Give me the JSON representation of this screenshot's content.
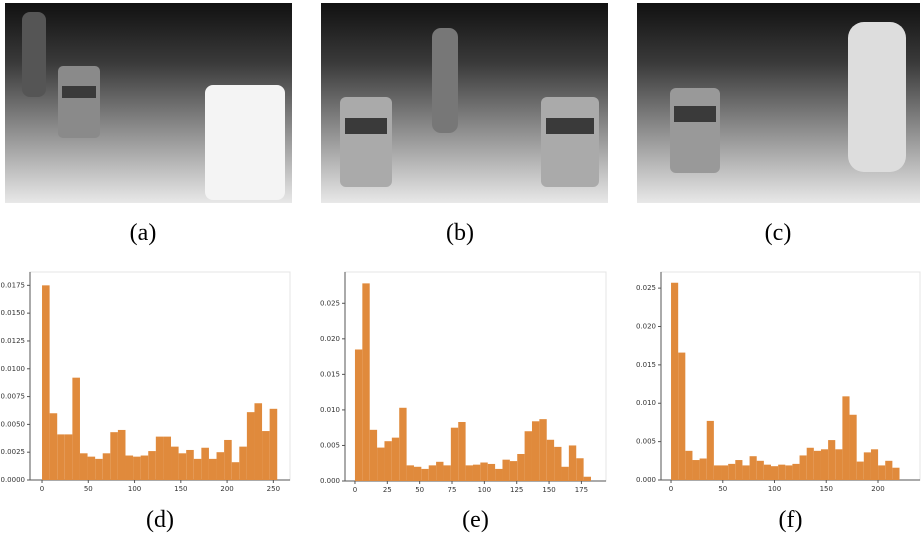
{
  "images": [
    {
      "caption": "(a)"
    },
    {
      "caption": "(b)"
    },
    {
      "caption": "(c)"
    }
  ],
  "chart_data": [
    {
      "type": "histogram",
      "caption": "(d)",
      "color": "#e08a3c",
      "bins": [
        0,
        8.2,
        16.4,
        24.6,
        32.8,
        41,
        49.2,
        57.4,
        65.6,
        73.8,
        82,
        90.2,
        98.4,
        106.6,
        114.8,
        123,
        131.2,
        139.4,
        147.6,
        155.8,
        164,
        172.2,
        180.4,
        188.6,
        196.8,
        205,
        213.2,
        221.4,
        229.6,
        237.8,
        246,
        254.2
      ],
      "values": [
        0.0175,
        0.006,
        0.0041,
        0.0041,
        0.0092,
        0.0024,
        0.0021,
        0.0019,
        0.0024,
        0.0043,
        0.0045,
        0.0022,
        0.0021,
        0.0022,
        0.0026,
        0.0039,
        0.0039,
        0.003,
        0.0024,
        0.0027,
        0.0019,
        0.0029,
        0.0019,
        0.0025,
        0.0036,
        0.0016,
        0.003,
        0.0061,
        0.0069,
        0.0044,
        0.0064
      ],
      "xlim": [
        -13,
        268
      ],
      "ylim": [
        0,
        0.0187
      ],
      "xticks": [
        0,
        50,
        100,
        150,
        200,
        250
      ],
      "yticks": [
        {
          "value": 0,
          "label": "0.0000"
        },
        {
          "value": 0.0025,
          "label": "0.0025"
        },
        {
          "value": 0.005,
          "label": "0.0050"
        },
        {
          "value": 0.0075,
          "label": "0.0075"
        },
        {
          "value": 0.01,
          "label": "0.0100"
        },
        {
          "value": 0.0125,
          "label": "0.0125"
        },
        {
          "value": 0.015,
          "label": "0.0150"
        },
        {
          "value": 0.0175,
          "label": "0.0175"
        }
      ]
    },
    {
      "type": "histogram",
      "caption": "(e)",
      "color": "#e08a3c",
      "bins": [
        0,
        5.7,
        11.4,
        17.1,
        22.8,
        28.5,
        34.2,
        39.9,
        45.6,
        51.3,
        57,
        62.7,
        68.4,
        74.1,
        79.8,
        85.5,
        91.2,
        96.9,
        102.6,
        108.3,
        114,
        119.7,
        125.4,
        131.1,
        136.8,
        142.5,
        148.2,
        153.9,
        159.6,
        165.3,
        171,
        176.7,
        182.4
      ],
      "values": [
        0.0185,
        0.0278,
        0.0072,
        0.0047,
        0.0056,
        0.0061,
        0.0103,
        0.0022,
        0.002,
        0.0017,
        0.0022,
        0.0027,
        0.0022,
        0.0075,
        0.0083,
        0.0022,
        0.0023,
        0.0026,
        0.0024,
        0.0017,
        0.003,
        0.0028,
        0.0038,
        0.007,
        0.0084,
        0.0087,
        0.0058,
        0.0048,
        0.002,
        0.005,
        0.0032,
        0.0006
      ],
      "xlim": [
        -7.7,
        194
      ],
      "ylim": [
        0,
        0.0294
      ],
      "xticks": [
        0,
        25,
        50,
        75,
        100,
        125,
        150,
        175
      ],
      "yticks": [
        {
          "value": 0,
          "label": "0.000"
        },
        {
          "value": 0.005,
          "label": "0.005"
        },
        {
          "value": 0.01,
          "label": "0.010"
        },
        {
          "value": 0.015,
          "label": "0.015"
        },
        {
          "value": 0.02,
          "label": "0.020"
        },
        {
          "value": 0.025,
          "label": "0.025"
        }
      ]
    },
    {
      "type": "histogram",
      "caption": "(f)",
      "color": "#e08a3c",
      "bins": [
        0,
        6.9,
        13.8,
        20.7,
        27.6,
        34.5,
        41.4,
        48.3,
        55.2,
        62.1,
        69,
        75.9,
        82.8,
        89.7,
        96.6,
        103.5,
        110.4,
        117.3,
        124.2,
        131.1,
        138,
        144.9,
        151.8,
        158.7,
        165.6,
        172.5,
        179.4,
        186.3,
        193.2,
        200.1,
        207,
        213.9,
        220.8
      ],
      "values": [
        0.0257,
        0.0166,
        0.0038,
        0.0026,
        0.0028,
        0.0077,
        0.0019,
        0.0019,
        0.0021,
        0.0026,
        0.0019,
        0.0031,
        0.0025,
        0.002,
        0.0018,
        0.002,
        0.0019,
        0.0021,
        0.0032,
        0.0042,
        0.0038,
        0.004,
        0.0052,
        0.004,
        0.0109,
        0.0085,
        0.0024,
        0.0036,
        0.004,
        0.0019,
        0.0025,
        0.0016
      ],
      "xlim": [
        -9.7,
        240.6
      ],
      "ylim": [
        0,
        0.0271
      ],
      "xticks": [
        0,
        50,
        100,
        150,
        200
      ],
      "yticks": [
        {
          "value": 0,
          "label": "0.000"
        },
        {
          "value": 0.005,
          "label": "0.005"
        },
        {
          "value": 0.01,
          "label": "0.010"
        },
        {
          "value": 0.015,
          "label": "0.015"
        },
        {
          "value": 0.02,
          "label": "0.020"
        },
        {
          "value": 0.025,
          "label": "0.025"
        }
      ]
    }
  ]
}
